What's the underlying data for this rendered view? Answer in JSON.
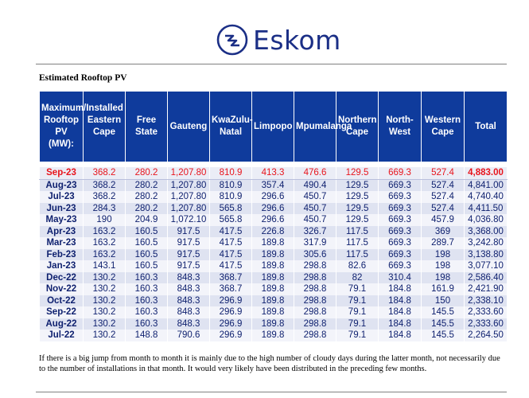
{
  "header": {
    "brand": "Eskom",
    "logo_icon": "eskom-logo-icon",
    "brand_color": "#1b2f86"
  },
  "section_title": "Estimated Rooftop PV",
  "table": {
    "header_color": "#0f3b9c",
    "columns": [
      "Maximum/Installed Rooftop PV (MW):",
      "Eastern Cape",
      "Free State",
      "Gauteng",
      "KwaZulu-Natal",
      "Limpopo",
      "Mpumalanga",
      "Northern Cape",
      "North-West",
      "Western Cape",
      "Total"
    ],
    "highlight_row": {
      "color": "#e8141c",
      "cells": [
        "Sep-23",
        "368.2",
        "280.2",
        "1,207.80",
        "810.9",
        "413.3",
        "476.6",
        "129.5",
        "669.3",
        "527.4",
        "4,883.00"
      ]
    },
    "rows": [
      [
        "Aug-23",
        "368.2",
        "280.2",
        "1,207.80",
        "810.9",
        "357.4",
        "490.4",
        "129.5",
        "669.3",
        "527.4",
        "4,841.00"
      ],
      [
        "Jul-23",
        "368.2",
        "280.2",
        "1,207.80",
        "810.9",
        "296.6",
        "450.7",
        "129.5",
        "669.3",
        "527.4",
        "4,740.40"
      ],
      [
        "Jun-23",
        "284.3",
        "280.2",
        "1,207.80",
        "565.8",
        "296.6",
        "450.7",
        "129.5",
        "669.3",
        "527.4",
        "4,411.50"
      ],
      [
        "May-23",
        "190",
        "204.9",
        "1,072.10",
        "565.8",
        "296.6",
        "450.7",
        "129.5",
        "669.3",
        "457.9",
        "4,036.80"
      ],
      [
        "Apr-23",
        "163.2",
        "160.5",
        "917.5",
        "417.5",
        "226.8",
        "326.7",
        "117.5",
        "669.3",
        "369",
        "3,368.00"
      ],
      [
        "Mar-23",
        "163.2",
        "160.5",
        "917.5",
        "417.5",
        "189.8",
        "317.9",
        "117.5",
        "669.3",
        "289.7",
        "3,242.80"
      ],
      [
        "Feb-23",
        "163.2",
        "160.5",
        "917.5",
        "417.5",
        "189.8",
        "305.6",
        "117.5",
        "669.3",
        "198",
        "3,138.80"
      ],
      [
        "Jan-23",
        "143.1",
        "160.5",
        "917.5",
        "417.5",
        "189.8",
        "298.8",
        "82.6",
        "669.3",
        "198",
        "3,077.10"
      ],
      [
        "Dec-22",
        "130.2",
        "160.3",
        "848.3",
        "368.7",
        "189.8",
        "298.8",
        "82",
        "310.4",
        "198",
        "2,586.40"
      ],
      [
        "Nov-22",
        "130.2",
        "160.3",
        "848.3",
        "368.7",
        "189.8",
        "298.8",
        "79.1",
        "184.8",
        "161.9",
        "2,421.90"
      ],
      [
        "Oct-22",
        "130.2",
        "160.3",
        "848.3",
        "296.9",
        "189.8",
        "298.8",
        "79.1",
        "184.8",
        "150",
        "2,338.10"
      ],
      [
        "Sep-22",
        "130.2",
        "160.3",
        "848.3",
        "296.9",
        "189.8",
        "298.8",
        "79.1",
        "184.8",
        "145.5",
        "2,333.60"
      ],
      [
        "Aug-22",
        "130.2",
        "160.3",
        "848.3",
        "296.9",
        "189.8",
        "298.8",
        "79.1",
        "184.8",
        "145.5",
        "2,333.60"
      ],
      [
        "Jul-22",
        "130.2",
        "148.8",
        "790.6",
        "296.9",
        "189.8",
        "298.8",
        "79.1",
        "184.8",
        "145.5",
        "2,264.50"
      ]
    ]
  },
  "note": "If there is a big jump from month to month it is mainly due to the high number of cloudy days during the latter month, not necessarily due to the number of installations in that month. It would very likely have been distributed in the preceding few months."
}
